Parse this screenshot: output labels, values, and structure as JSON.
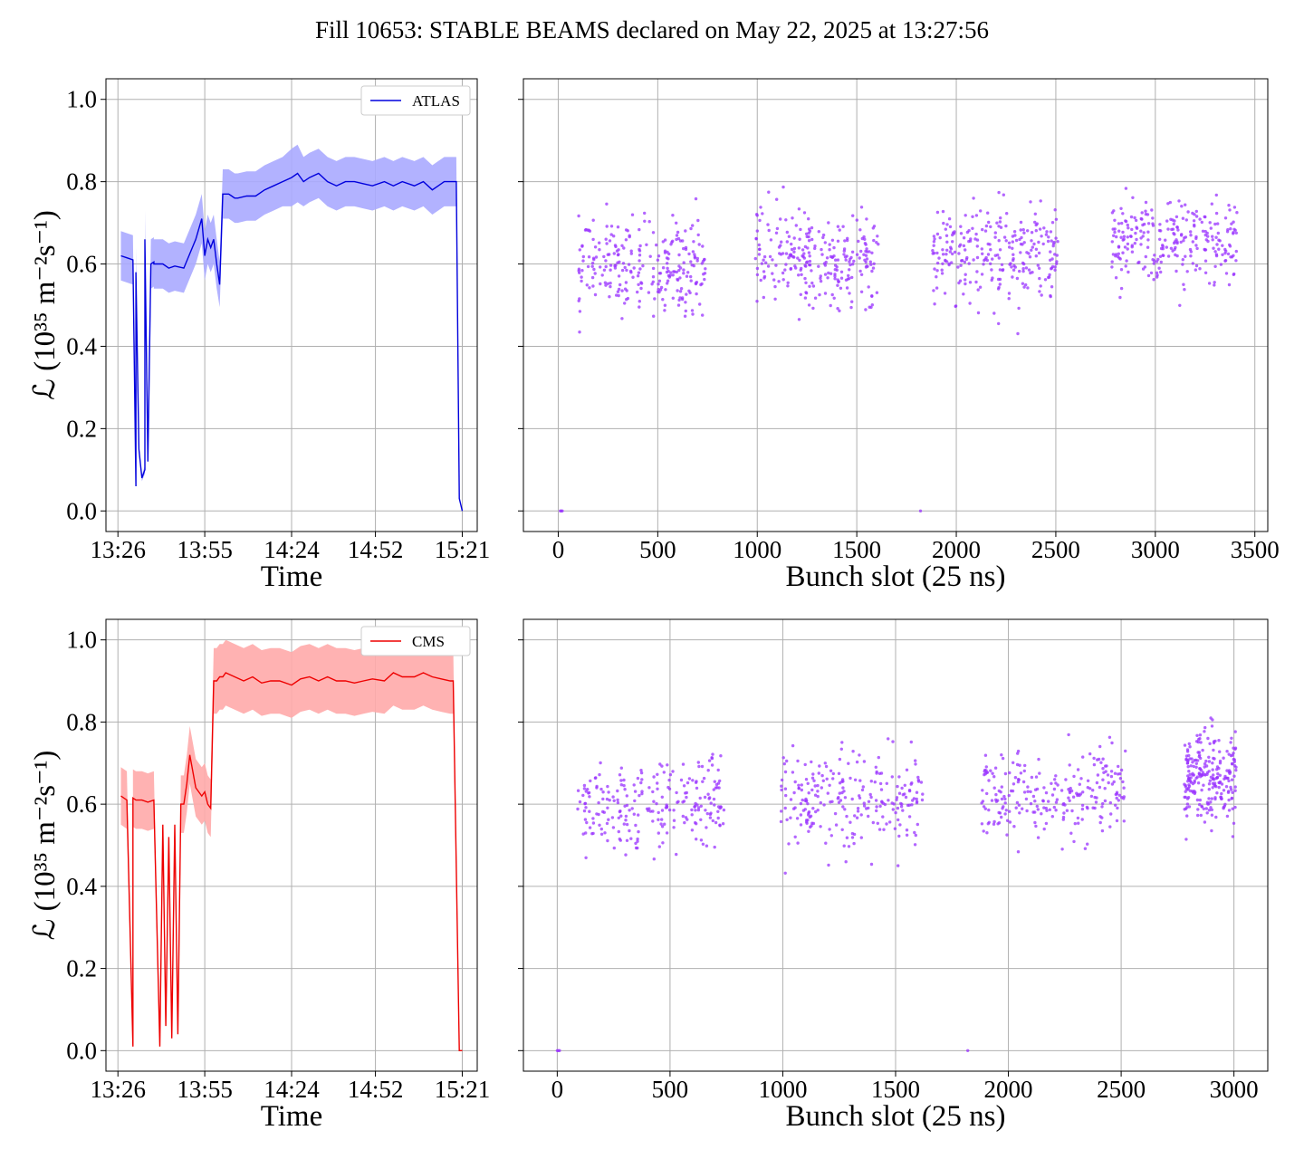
{
  "title": "Fill 10653: STABLE BEAMS declared on May 22, 2025 at 13:27:56",
  "chart_data": [
    {
      "type": "line",
      "panel": "top-left",
      "legend": {
        "label": "ATLAS",
        "location": "upper right"
      },
      "color": "#0000dd",
      "band_color": "#aaaaff",
      "xlabel": "Time",
      "ylabel": "ℒ (10³⁵ m⁻²s⁻¹)",
      "xticks": [
        "13:26",
        "13:55",
        "14:24",
        "14:52",
        "15:21"
      ],
      "xlim": [
        "13:22",
        "15:26"
      ],
      "ylim": [
        -0.05,
        1.05
      ],
      "yticks": [
        0.0,
        0.2,
        0.4,
        0.6,
        0.8,
        1.0
      ],
      "grid": true,
      "x": [
        "13:27",
        "13:29",
        "13:31",
        "13:32",
        "13:32",
        "13:33",
        "13:34",
        "13:35",
        "13:35",
        "13:36",
        "13:37",
        "13:38",
        "13:38",
        "13:39",
        "13:41",
        "13:43",
        "13:45",
        "13:48",
        "13:52",
        "13:54",
        "13:55",
        "13:56",
        "13:57",
        "13:58",
        "13:59",
        "14:00",
        "14:01",
        "14:02",
        "14:03",
        "14:04",
        "14:05",
        "14:06",
        "14:09",
        "14:12",
        "14:15",
        "14:18",
        "14:21",
        "14:24",
        "14:26",
        "14:28",
        "14:30",
        "14:33",
        "14:36",
        "14:39",
        "14:42",
        "14:45",
        "14:48",
        "14:51",
        "14:55",
        "14:58",
        "15:01",
        "15:05",
        "15:08",
        "15:11",
        "15:13",
        "15:15",
        "15:16",
        "15:18",
        "15:19",
        "15:20",
        "15:21"
      ],
      "y": [
        0.62,
        0.615,
        0.61,
        0.06,
        0.58,
        0.15,
        0.08,
        0.1,
        0.66,
        0.12,
        0.6,
        0.605,
        0.6,
        0.6,
        0.6,
        0.59,
        0.595,
        0.59,
        0.66,
        0.71,
        0.62,
        0.66,
        0.64,
        0.66,
        0.6,
        0.55,
        0.77,
        0.77,
        0.77,
        0.765,
        0.76,
        0.76,
        0.765,
        0.765,
        0.78,
        0.79,
        0.8,
        0.81,
        0.82,
        0.8,
        0.81,
        0.82,
        0.8,
        0.79,
        0.8,
        0.8,
        0.795,
        0.79,
        0.8,
        0.79,
        0.8,
        0.79,
        0.8,
        0.78,
        0.79,
        0.8,
        0.8,
        0.8,
        0.8,
        0.03,
        0.0
      ],
      "band": [
        0.06,
        0.06,
        0.06,
        0.005,
        0.06,
        0.01,
        0.008,
        0.01,
        0.07,
        0.01,
        0.06,
        0.06,
        0.06,
        0.06,
        0.06,
        0.06,
        0.06,
        0.06,
        0.06,
        0.06,
        0.06,
        0.06,
        0.06,
        0.06,
        0.06,
        0.055,
        0.06,
        0.06,
        0.06,
        0.06,
        0.06,
        0.06,
        0.06,
        0.06,
        0.06,
        0.06,
        0.06,
        0.07,
        0.07,
        0.06,
        0.06,
        0.06,
        0.06,
        0.06,
        0.06,
        0.06,
        0.06,
        0.06,
        0.06,
        0.06,
        0.06,
        0.06,
        0.06,
        0.06,
        0.06,
        0.06,
        0.06,
        0.06,
        0.06,
        0.003,
        0.0
      ]
    },
    {
      "type": "scatter",
      "panel": "top-right",
      "color": "#9933ff",
      "xlabel": "Bunch slot (25 ns)",
      "xticks": [
        0,
        500,
        1000,
        1500,
        2000,
        2500,
        3000,
        3500
      ],
      "xlim": [
        -175,
        3565
      ],
      "ylim": [
        -0.05,
        1.05
      ],
      "yticks": [
        0.0,
        0.2,
        0.4,
        0.6,
        0.8,
        1.0
      ],
      "grid": true,
      "groups": [
        {
          "x_range": [
            100,
            740
          ],
          "y_center": 0.6,
          "y_spread": 0.055
        },
        {
          "x_range": [
            990,
            1610
          ],
          "y_center": 0.61,
          "y_spread": 0.055
        },
        {
          "x_range": [
            1880,
            2510
          ],
          "y_center": 0.62,
          "y_spread": 0.055
        },
        {
          "x_range": [
            2780,
            3410
          ],
          "y_center": 0.655,
          "y_spread": 0.055
        }
      ],
      "n_points_per_group": 260,
      "zero_points_x": [
        10,
        15,
        20,
        1820
      ]
    },
    {
      "type": "line",
      "panel": "bottom-left",
      "legend": {
        "label": "CMS",
        "location": "upper right"
      },
      "color": "#ee0000",
      "band_color": "#ffaaaa",
      "xlabel": "Time",
      "ylabel": "ℒ (10³⁵ m⁻²s⁻¹)",
      "xticks": [
        "13:26",
        "13:55",
        "14:24",
        "14:52",
        "15:21"
      ],
      "xlim": [
        "13:22",
        "15:26"
      ],
      "ylim": [
        -0.05,
        1.05
      ],
      "yticks": [
        0.0,
        0.2,
        0.4,
        0.6,
        0.8,
        1.0
      ],
      "grid": true,
      "x": [
        "13:27",
        "13:29",
        "13:31",
        "13:31",
        "13:32",
        "13:34",
        "13:36",
        "13:38",
        "13:40",
        "13:41",
        "13:42",
        "13:43",
        "13:44",
        "13:45",
        "13:46",
        "13:47",
        "13:48",
        "13:49",
        "13:50",
        "13:52",
        "13:54",
        "13:55",
        "13:56",
        "13:57",
        "13:58",
        "13:59",
        "14:00",
        "14:01",
        "14:02",
        "14:05",
        "14:08",
        "14:11",
        "14:14",
        "14:17",
        "14:20",
        "14:24",
        "14:27",
        "14:30",
        "14:33",
        "14:36",
        "14:39",
        "14:42",
        "14:45",
        "14:48",
        "14:51",
        "14:55",
        "14:58",
        "15:01",
        "15:05",
        "15:08",
        "15:11",
        "15:14",
        "15:17",
        "15:18",
        "15:20",
        "15:21"
      ],
      "y": [
        0.62,
        0.61,
        0.01,
        0.615,
        0.61,
        0.61,
        0.605,
        0.61,
        0.01,
        0.55,
        0.06,
        0.52,
        0.03,
        0.55,
        0.04,
        0.6,
        0.6,
        0.65,
        0.72,
        0.64,
        0.62,
        0.63,
        0.6,
        0.59,
        0.9,
        0.9,
        0.91,
        0.91,
        0.92,
        0.91,
        0.9,
        0.91,
        0.895,
        0.9,
        0.9,
        0.89,
        0.905,
        0.91,
        0.9,
        0.91,
        0.9,
        0.9,
        0.895,
        0.9,
        0.905,
        0.9,
        0.92,
        0.91,
        0.91,
        0.92,
        0.91,
        0.905,
        0.9,
        0.9,
        0.0,
        0.0
      ],
      "band": [
        0.07,
        0.07,
        0.001,
        0.07,
        0.07,
        0.07,
        0.07,
        0.07,
        0.001,
        0.005,
        0.006,
        0.005,
        0.003,
        0.006,
        0.004,
        0.07,
        0.07,
        0.07,
        0.07,
        0.07,
        0.07,
        0.07,
        0.07,
        0.07,
        0.08,
        0.08,
        0.08,
        0.08,
        0.08,
        0.08,
        0.08,
        0.08,
        0.08,
        0.08,
        0.08,
        0.08,
        0.08,
        0.08,
        0.08,
        0.08,
        0.08,
        0.08,
        0.08,
        0.08,
        0.08,
        0.08,
        0.08,
        0.08,
        0.08,
        0.08,
        0.08,
        0.08,
        0.08,
        0.08,
        0.0,
        0.0
      ]
    },
    {
      "type": "scatter",
      "panel": "bottom-right",
      "color": "#9933ff",
      "xlabel": "Bunch slot (25 ns)",
      "xticks": [
        0,
        500,
        1000,
        1500,
        2000,
        2500,
        3000
      ],
      "xlim": [
        -150,
        3150
      ],
      "ylim": [
        -0.05,
        1.05
      ],
      "yticks": [
        0.0,
        0.2,
        0.4,
        0.6,
        0.8,
        1.0
      ],
      "grid": true,
      "groups": [
        {
          "x_range": [
            90,
            740
          ],
          "y_center": 0.6,
          "y_spread": 0.055
        },
        {
          "x_range": [
            990,
            1620
          ],
          "y_center": 0.615,
          "y_spread": 0.055
        },
        {
          "x_range": [
            1880,
            2520
          ],
          "y_center": 0.62,
          "y_spread": 0.055
        },
        {
          "x_range": [
            2780,
            3010
          ],
          "y_center": 0.66,
          "y_spread": 0.06
        }
      ],
      "n_points_per_group": 240,
      "zero_points_x": [
        0,
        5,
        10,
        1820
      ]
    }
  ]
}
